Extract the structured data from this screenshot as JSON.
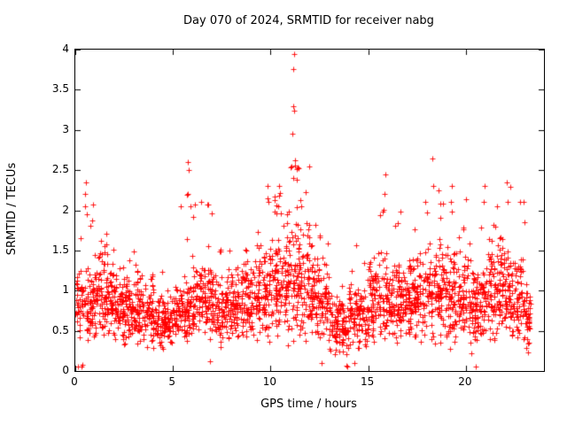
{
  "chart_data": {
    "type": "scatter",
    "title": "Day 070 of 2024, SRMTID for receiver nabg",
    "xlabel": "GPS time / hours",
    "ylabel": "SRMTID / TECUs",
    "xlim": [
      0,
      24
    ],
    "ylim": [
      0,
      4
    ],
    "x_ticks": {
      "values": [
        0,
        5,
        10,
        15,
        20
      ],
      "labels": [
        "0",
        "5",
        "10",
        "15",
        "20"
      ]
    },
    "y_ticks": {
      "values": [
        0,
        0.5,
        1,
        1.5,
        2,
        2.5,
        3,
        3.5,
        4
      ],
      "labels": [
        "0",
        "0.5",
        "1",
        "1.5",
        "2",
        "2.5",
        "3",
        "3.5",
        "4"
      ]
    },
    "grid": false,
    "legend": "none",
    "marker": {
      "shape": "plus",
      "color": "#ff0000",
      "size": 7
    },
    "frame_color": "#000000",
    "background_color": "#ffffff",
    "tick_length": 6,
    "seed": 70,
    "envelope_fields": [
      "hour",
      "count",
      "base_min",
      "base_max",
      "peak",
      "peak_fraction",
      "span_hours"
    ],
    "hourly_envelope": [
      [
        0,
        115,
        0.35,
        1.35,
        2.3,
        0.02,
        1
      ],
      [
        1,
        125,
        0.3,
        1.6,
        1.8,
        0.02,
        1
      ],
      [
        2,
        125,
        0.3,
        1.25,
        1.5,
        0.02,
        1
      ],
      [
        3,
        115,
        0.2,
        1.3,
        1.55,
        0.02,
        1
      ],
      [
        4,
        105,
        0.2,
        1.0,
        1.3,
        0.02,
        1
      ],
      [
        5,
        115,
        0.3,
        1.2,
        2.35,
        0.03,
        1
      ],
      [
        6,
        120,
        0.35,
        1.5,
        2.2,
        0.03,
        1
      ],
      [
        7,
        115,
        0.25,
        1.3,
        1.6,
        0.02,
        1
      ],
      [
        8,
        120,
        0.3,
        1.4,
        1.9,
        0.02,
        1
      ],
      [
        9,
        120,
        0.3,
        1.6,
        2.2,
        0.03,
        1
      ],
      [
        10,
        130,
        0.3,
        1.8,
        2.35,
        0.05,
        1
      ],
      [
        11,
        130,
        0.3,
        2.0,
        2.6,
        0.06,
        1
      ],
      [
        12,
        120,
        0.3,
        1.5,
        1.95,
        0.03,
        1
      ],
      [
        13,
        105,
        0.15,
        1.0,
        1.3,
        0.02,
        1
      ],
      [
        14,
        105,
        0.2,
        1.2,
        1.6,
        0.02,
        1
      ],
      [
        15,
        120,
        0.3,
        1.5,
        2.3,
        0.03,
        1
      ],
      [
        16,
        120,
        0.3,
        1.4,
        2.1,
        0.03,
        1
      ],
      [
        17,
        120,
        0.3,
        1.5,
        2.0,
        0.03,
        1
      ],
      [
        18,
        120,
        0.3,
        1.7,
        2.5,
        0.04,
        1
      ],
      [
        19,
        120,
        0.25,
        1.6,
        2.25,
        0.03,
        1
      ],
      [
        20,
        118,
        0.2,
        1.5,
        2.25,
        0.03,
        1
      ],
      [
        21,
        120,
        0.3,
        1.7,
        2.1,
        0.03,
        1
      ],
      [
        22,
        120,
        0.25,
        1.6,
        2.3,
        0.03,
        1
      ],
      [
        23,
        40,
        0.2,
        1.2,
        1.4,
        0.02,
        0.3
      ]
    ],
    "outliers": [
      [
        11.2,
        3.95
      ],
      [
        11.17,
        3.76
      ],
      [
        11.14,
        3.3
      ],
      [
        11.22,
        3.24
      ],
      [
        11.1,
        2.95
      ],
      [
        11.24,
        2.62
      ],
      [
        11.06,
        2.55
      ],
      [
        11.18,
        2.4
      ],
      [
        5.78,
        2.6
      ],
      [
        5.82,
        2.5
      ],
      [
        5.74,
        2.2
      ],
      [
        5.9,
        2.05
      ],
      [
        0.55,
        2.35
      ],
      [
        0.5,
        2.2
      ],
      [
        0.52,
        2.05
      ],
      [
        0.6,
        1.95
      ],
      [
        10.45,
        2.3
      ],
      [
        10.5,
        2.22
      ],
      [
        10.4,
        2.05
      ],
      [
        9.85,
        2.3
      ],
      [
        9.9,
        2.1
      ],
      [
        15.9,
        2.45
      ],
      [
        15.85,
        2.2
      ],
      [
        18.3,
        2.65
      ],
      [
        18.35,
        2.3
      ],
      [
        18.6,
        2.25
      ],
      [
        17.9,
        2.1
      ],
      [
        19.3,
        2.3
      ],
      [
        19.25,
        2.1
      ],
      [
        20.95,
        2.3
      ],
      [
        20.9,
        2.1
      ],
      [
        22.1,
        2.35
      ],
      [
        22.15,
        2.1
      ],
      [
        21.6,
        2.05
      ],
      [
        13.9,
        0.07
      ],
      [
        13.95,
        0.05
      ],
      [
        14.3,
        0.1
      ],
      [
        20.5,
        0.06
      ],
      [
        0.12,
        0.05
      ],
      [
        0.3,
        0.06
      ],
      [
        0.35,
        0.08
      ],
      [
        6.9,
        0.12
      ],
      [
        12.6,
        0.1
      ]
    ]
  }
}
